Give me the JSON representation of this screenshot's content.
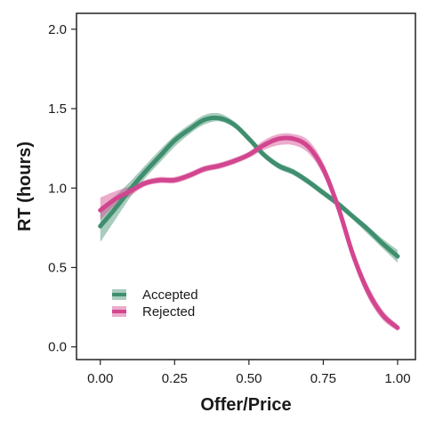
{
  "chart_data": {
    "type": "line",
    "xlabel": "Offer/Price",
    "ylabel": "RT (hours)",
    "xlim": [
      -0.08,
      1.06
    ],
    "ylim": [
      -0.08,
      2.1
    ],
    "x_ticks": [
      0.0,
      0.25,
      0.5,
      0.75,
      1.0
    ],
    "x_tick_labels": [
      "0.00",
      "0.25",
      "0.50",
      "0.75",
      "1.00"
    ],
    "y_ticks": [
      0.0,
      0.5,
      1.0,
      1.5,
      2.0
    ],
    "y_tick_labels": [
      "0.0",
      "0.5",
      "1.0",
      "1.5",
      "2.0"
    ],
    "grid": false,
    "legend_position": "bottom-left",
    "series": [
      {
        "name": "Accepted",
        "color": "#3f8f6f",
        "x": [
          0.0,
          0.05,
          0.1,
          0.15,
          0.2,
          0.25,
          0.3,
          0.35,
          0.4,
          0.45,
          0.5,
          0.55,
          0.6,
          0.65,
          0.7,
          0.75,
          0.8,
          0.85,
          0.9,
          0.95,
          1.0
        ],
        "y": [
          0.76,
          0.87,
          0.99,
          1.1,
          1.2,
          1.3,
          1.37,
          1.43,
          1.44,
          1.4,
          1.31,
          1.21,
          1.14,
          1.1,
          1.04,
          0.97,
          0.9,
          0.82,
          0.74,
          0.65,
          0.57
        ],
        "lower": [
          0.66,
          0.8,
          0.94,
          1.06,
          1.16,
          1.26,
          1.34,
          1.4,
          1.42,
          1.38,
          1.29,
          1.19,
          1.12,
          1.08,
          1.02,
          0.95,
          0.88,
          0.8,
          0.71,
          0.62,
          0.53
        ],
        "upper": [
          0.88,
          0.95,
          1.04,
          1.14,
          1.24,
          1.33,
          1.4,
          1.46,
          1.47,
          1.42,
          1.33,
          1.23,
          1.16,
          1.12,
          1.06,
          0.99,
          0.92,
          0.84,
          0.76,
          0.68,
          0.61
        ]
      },
      {
        "name": "Rejected",
        "color": "#d2468f",
        "x": [
          0.0,
          0.05,
          0.1,
          0.15,
          0.2,
          0.25,
          0.3,
          0.35,
          0.4,
          0.45,
          0.5,
          0.55,
          0.6,
          0.65,
          0.7,
          0.75,
          0.8,
          0.85,
          0.9,
          0.95,
          1.0
        ],
        "y": [
          0.86,
          0.93,
          0.98,
          1.03,
          1.05,
          1.05,
          1.08,
          1.12,
          1.14,
          1.17,
          1.21,
          1.27,
          1.31,
          1.31,
          1.26,
          1.12,
          0.88,
          0.58,
          0.35,
          0.2,
          0.12
        ],
        "lower": [
          0.8,
          0.89,
          0.95,
          1.01,
          1.03,
          1.03,
          1.06,
          1.1,
          1.12,
          1.15,
          1.19,
          1.24,
          1.27,
          1.27,
          1.22,
          1.08,
          0.84,
          0.54,
          0.31,
          0.17,
          0.1
        ],
        "upper": [
          0.94,
          0.98,
          1.01,
          1.05,
          1.07,
          1.07,
          1.1,
          1.14,
          1.16,
          1.19,
          1.23,
          1.3,
          1.34,
          1.34,
          1.3,
          1.16,
          0.92,
          0.62,
          0.39,
          0.23,
          0.14
        ]
      }
    ]
  }
}
